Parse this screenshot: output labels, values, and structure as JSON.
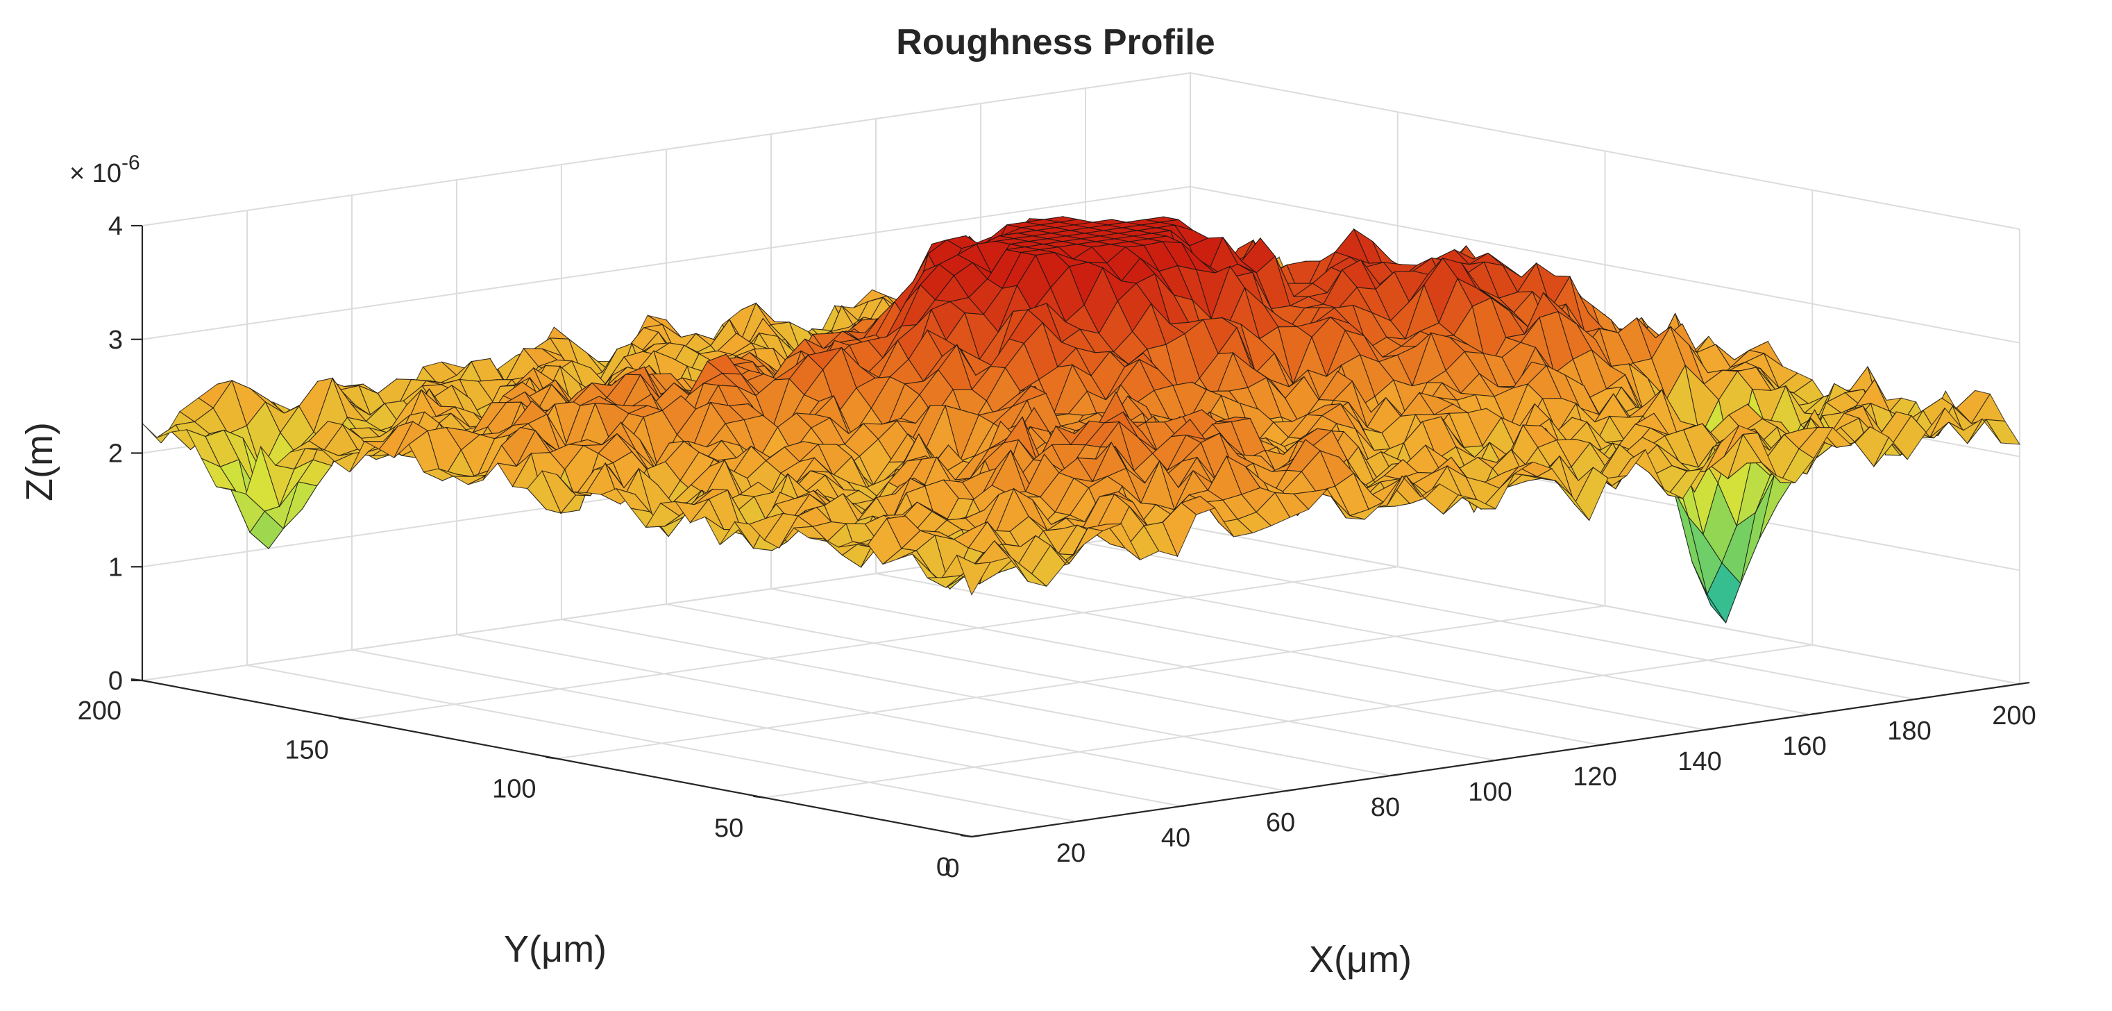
{
  "chart_data": {
    "type": "surface3d",
    "title": "Roughness Profile",
    "xlabel": "X(μm)",
    "ylabel": "Y(μm)",
    "zlabel": "Z(m)",
    "z_exponent": "× 10",
    "z_exponent_power": "-6",
    "xlim": [
      0,
      200
    ],
    "ylim": [
      0,
      200
    ],
    "zlim": [
      0,
      4e-06
    ],
    "xticks": [
      "0",
      "20",
      "40",
      "60",
      "80",
      "100",
      "120",
      "140",
      "160",
      "180",
      "200"
    ],
    "yticks": [
      "0",
      "50",
      "100",
      "150",
      "200"
    ],
    "zticks": [
      "0",
      "1",
      "2",
      "3",
      "4"
    ],
    "grid": true,
    "colormap": [
      "#22b8a0",
      "#7fd35a",
      "#d8e23a",
      "#f2a82e",
      "#e4641c",
      "#cc1f10"
    ],
    "surface": {
      "base_height_um": 2.3,
      "features": [
        {
          "x": 95,
          "y": 100,
          "height_um": 1.5
        },
        {
          "x": 115,
          "y": 115,
          "height_um": 0.8
        },
        {
          "x": 155,
          "y": 80,
          "height_um": 1.1
        },
        {
          "x": 175,
          "y": 40,
          "height_um": -1.9
        },
        {
          "x": 60,
          "y": 35,
          "height_um": 0.6
        },
        {
          "x": 40,
          "y": 120,
          "height_um": 0.5
        },
        {
          "x": 8,
          "y": 180,
          "height_um": -0.9
        }
      ]
    }
  }
}
